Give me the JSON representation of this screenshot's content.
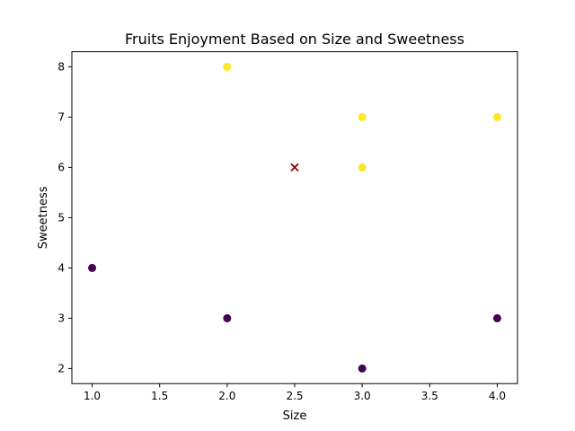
{
  "chart_data": {
    "type": "scatter",
    "title": "Fruits Enjoyment Based on Size and Sweetness",
    "xlabel": "Size",
    "ylabel": "Sweetness",
    "xlim": [
      0.85,
      4.15
    ],
    "ylim": [
      1.7,
      8.3
    ],
    "xticks": [
      "1.0",
      "1.5",
      "2.0",
      "2.5",
      "3.0",
      "3.5",
      "4.0"
    ],
    "yticks": [
      "2",
      "3",
      "4",
      "5",
      "6",
      "7",
      "8"
    ],
    "grid": false,
    "series": [
      {
        "color": "#fde725",
        "marker": "circle",
        "points": [
          {
            "x": 2.0,
            "y": 8
          },
          {
            "x": 3.0,
            "y": 7
          },
          {
            "x": 3.0,
            "y": 6
          },
          {
            "x": 4.0,
            "y": 7
          }
        ]
      },
      {
        "color": "#440154",
        "marker": "circle",
        "points": [
          {
            "x": 1.0,
            "y": 4
          },
          {
            "x": 2.0,
            "y": 3
          },
          {
            "x": 3.0,
            "y": 2
          },
          {
            "x": 4.0,
            "y": 3
          }
        ]
      },
      {
        "color": "#8b0000",
        "marker": "x",
        "points": [
          {
            "x": 2.5,
            "y": 6
          }
        ]
      }
    ]
  }
}
